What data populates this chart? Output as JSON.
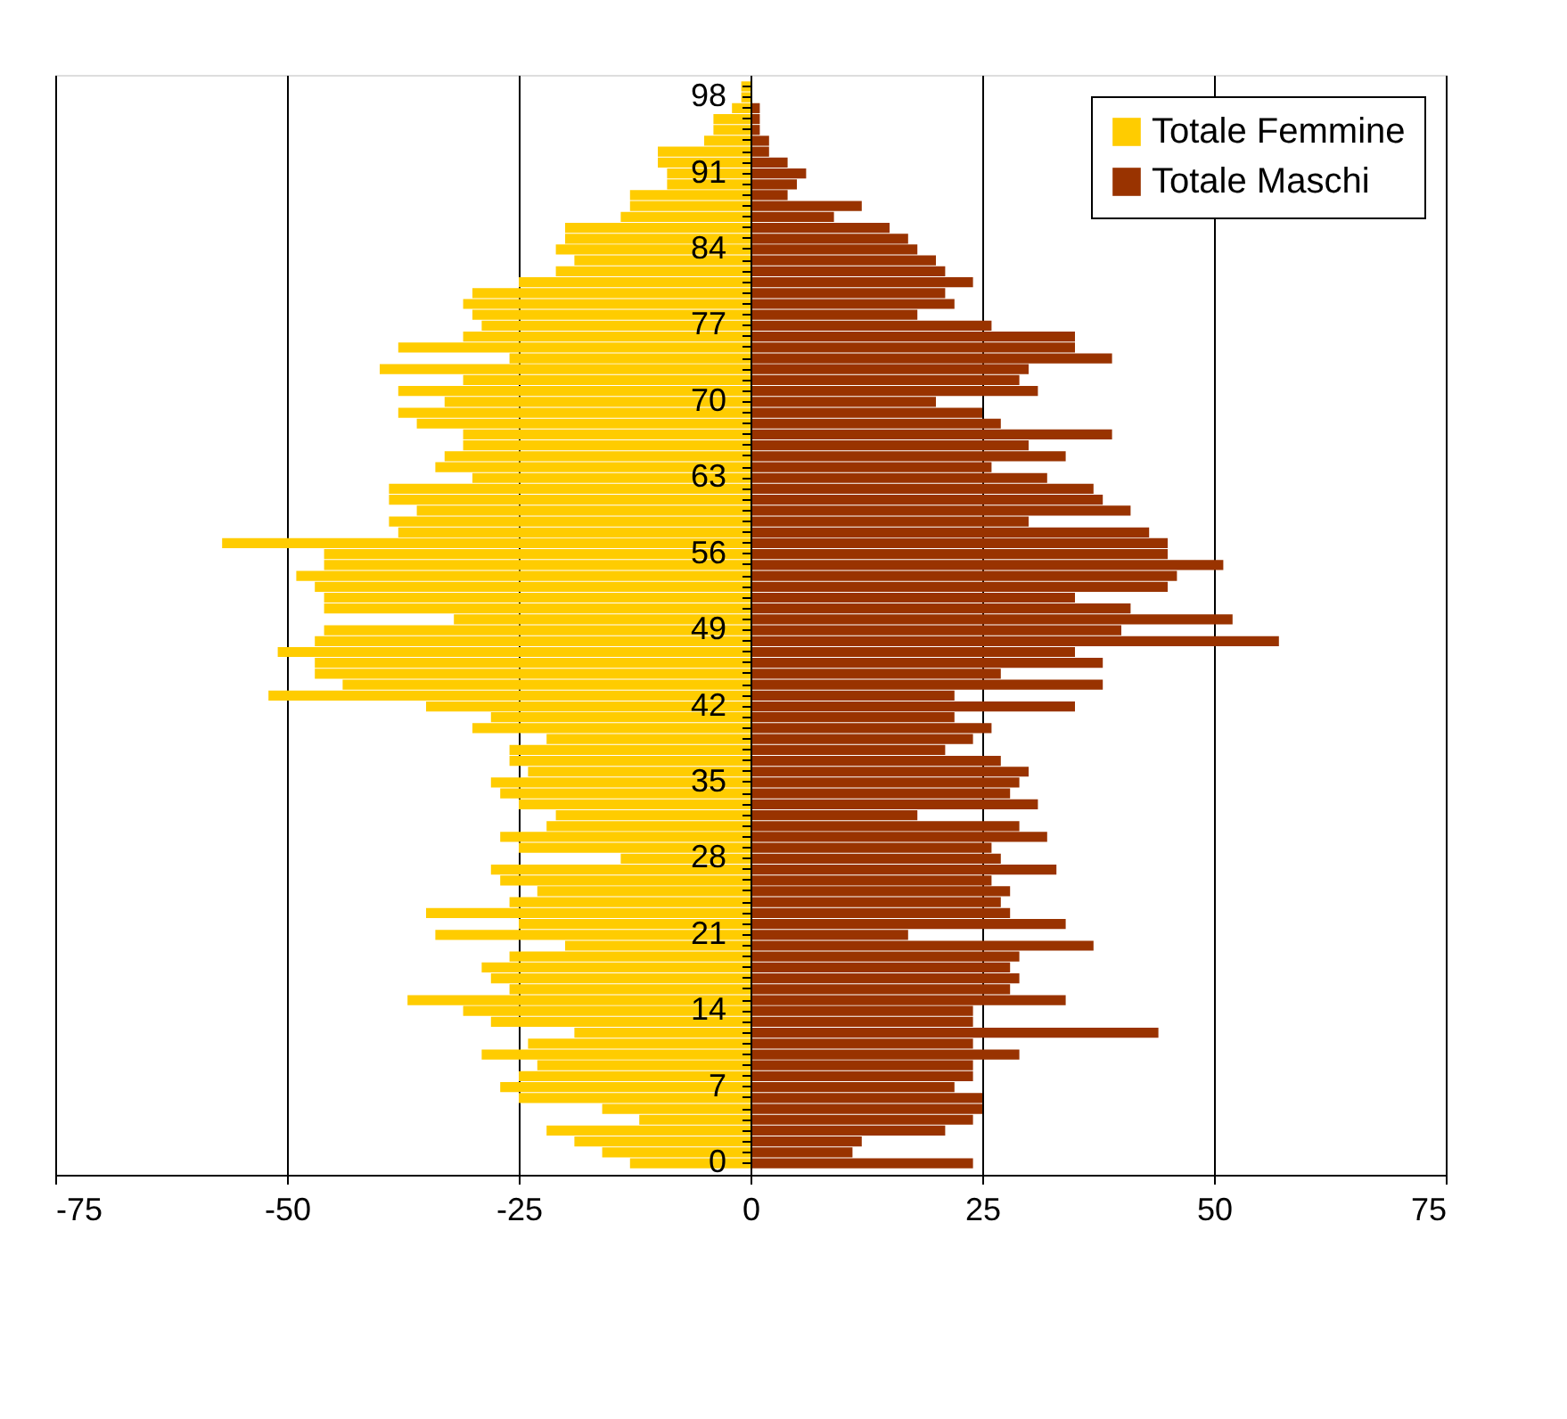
{
  "chart_data": {
    "type": "bar",
    "orientation": "horizontal",
    "categories": [
      null,
      "98",
      null,
      null,
      null,
      null,
      null,
      null,
      "91",
      null,
      null,
      null,
      null,
      null,
      null,
      "84",
      null,
      null,
      null,
      null,
      null,
      null,
      "77",
      null,
      null,
      null,
      null,
      null,
      null,
      "70",
      null,
      null,
      null,
      null,
      null,
      null,
      "63",
      null,
      null,
      null,
      null,
      null,
      null,
      "56",
      null,
      null,
      null,
      null,
      null,
      null,
      "49",
      null,
      null,
      null,
      null,
      null,
      null,
      "42",
      null,
      null,
      null,
      null,
      null,
      null,
      "35",
      null,
      null,
      null,
      null,
      null,
      null,
      "28",
      null,
      null,
      null,
      null,
      null,
      null,
      "21",
      null,
      null,
      null,
      null,
      null,
      null,
      "14",
      null,
      null,
      null,
      null,
      null,
      null,
      "7",
      null,
      null,
      null,
      null,
      null,
      null,
      "0"
    ],
    "series": [
      {
        "name": "Totale Femmine",
        "color": "#ffcc00",
        "values": [
          -1,
          -1,
          -2,
          -4,
          -4,
          -5,
          -10,
          -10,
          -9,
          -9,
          -13,
          -13,
          -14,
          -20,
          -20,
          -21,
          -19,
          -21,
          -25,
          -30,
          -31,
          -30,
          -29,
          -31,
          -38,
          -26,
          -40,
          -31,
          -38,
          -33,
          -38,
          -36,
          -31,
          -31,
          -33,
          -34,
          -30,
          -39,
          -39,
          -36,
          -39,
          -38,
          -57,
          -46,
          -46,
          -49,
          -47,
          -46,
          -46,
          -32,
          -46,
          -47,
          -51,
          -47,
          -47,
          -44,
          -52,
          -35,
          -28,
          -30,
          -22,
          -26,
          -26,
          -24,
          -28,
          -27,
          -25,
          -21,
          -22,
          -27,
          -25,
          -14,
          -28,
          -27,
          -23,
          -26,
          -35,
          -25,
          -34,
          -20,
          -26,
          -29,
          -28,
          -26,
          -37,
          -31,
          -28,
          -19,
          -24,
          -29,
          -23,
          -25,
          -27,
          -25,
          -16,
          -12,
          -22,
          -19,
          -16,
          -13
        ]
      },
      {
        "name": "Totale Maschi",
        "color": "#993300",
        "values": [
          0,
          0,
          1,
          1,
          1,
          2,
          2,
          4,
          6,
          5,
          4,
          12,
          9,
          15,
          17,
          18,
          20,
          21,
          24,
          21,
          22,
          18,
          26,
          35,
          35,
          39,
          30,
          29,
          31,
          20,
          25,
          27,
          39,
          30,
          34,
          26,
          32,
          37,
          38,
          41,
          30,
          43,
          45,
          45,
          51,
          46,
          45,
          35,
          41,
          52,
          40,
          57,
          35,
          38,
          27,
          38,
          22,
          35,
          22,
          26,
          24,
          21,
          27,
          30,
          29,
          28,
          31,
          18,
          29,
          32,
          26,
          27,
          33,
          26,
          28,
          27,
          28,
          34,
          17,
          37,
          29,
          28,
          29,
          28,
          34,
          24,
          24,
          44,
          24,
          29,
          24,
          24,
          22,
          25,
          25,
          24,
          21,
          12,
          11,
          24
        ]
      }
    ],
    "xlim": [
      -75,
      75
    ],
    "xticks": [
      -75,
      -50,
      -25,
      0,
      25,
      50,
      75
    ],
    "stacked": true,
    "grid": "x",
    "legend": "top right"
  }
}
